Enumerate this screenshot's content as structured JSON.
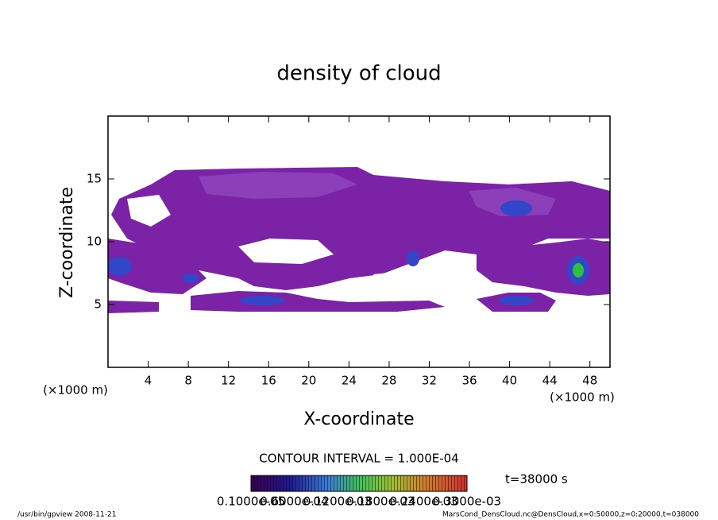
{
  "chart_data": {
    "type": "contour",
    "title": "density of cloud",
    "x_label": "X-coordinate",
    "y_label": "Z-coordinate",
    "x_unit": "(×1000 m)",
    "y_unit": "(×1000 m)",
    "xlim": [
      0,
      50
    ],
    "xticks": [
      4,
      8,
      12,
      16,
      20,
      24,
      28,
      32,
      36,
      40,
      44,
      48
    ],
    "ylim": [
      0,
      20
    ],
    "yticks": [
      5,
      10,
      15
    ],
    "contour_interval": "CONTOUR INTERVAL = 1.000E-04",
    "time_label": "t=38000 s",
    "colorbar_labels": [
      "0.1000e-05",
      "0.6000e-04",
      "0.1200e-03",
      "0.1800e-03",
      "0.2400e-03",
      "0.3000e-03"
    ],
    "footer_left": "/usr/bin/gpview   2008-11-21",
    "footer_right": "MarsCond_DensCloud.nc@DensCloud,x=0:50000,z=0:20000,t=038000"
  }
}
